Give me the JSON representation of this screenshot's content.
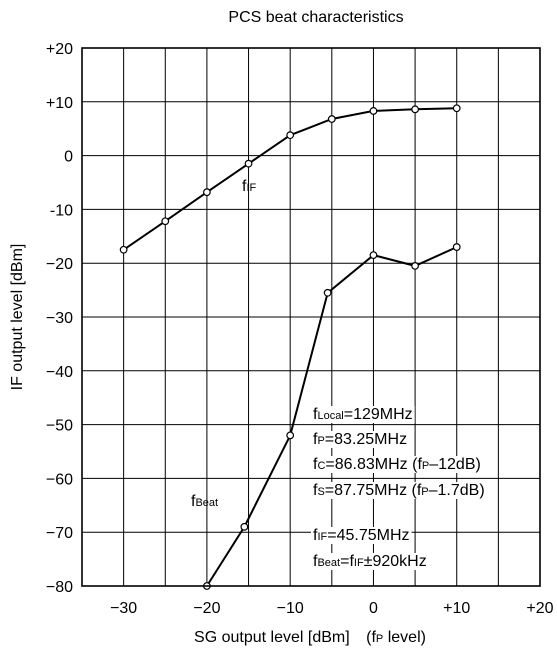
{
  "chart_data": {
    "type": "line",
    "title": "PCS beat characteristics",
    "xlabel": "SG output level [dBm]",
    "xlabel_note": {
      "pre": "(f",
      "sub": "P",
      "post": " level)"
    },
    "ylabel": "IF output level [dBm]",
    "xlim": [
      -35,
      20
    ],
    "ylim": [
      -80,
      20
    ],
    "x_ticks": [
      -30,
      -20,
      -10,
      0,
      10,
      20
    ],
    "x_tick_labels": [
      "−30",
      "−20",
      "−10",
      "0",
      "+10",
      "+20"
    ],
    "y_ticks": [
      20,
      10,
      0,
      -10,
      -20,
      -30,
      -40,
      -50,
      -60,
      -70,
      -80
    ],
    "y_tick_labels": [
      "+20",
      "+10",
      "0",
      "-10",
      "−20",
      "−30",
      "−40",
      "−50",
      "−60",
      "−70",
      "−80"
    ],
    "grid": true,
    "series": [
      {
        "name": "fIF",
        "label_main": "f",
        "label_sub": "IF",
        "x": [
          -30,
          -25,
          -20,
          -15,
          -10,
          -5,
          0,
          5,
          10
        ],
        "y": [
          -17.5,
          -12.2,
          -6.8,
          -1.5,
          3.8,
          6.8,
          8.3,
          8.6,
          8.8
        ]
      },
      {
        "name": "fBeat",
        "label_main": "f",
        "label_sub": "Beat",
        "x": [
          -20,
          -15.5,
          -10,
          -5.5,
          0,
          5,
          10
        ],
        "y": [
          -80,
          -69,
          -52,
          -25.5,
          -18.5,
          -20.5,
          -17
        ]
      }
    ],
    "annotations": [
      {
        "pre": "f",
        "sub": "Local",
        "post": "=129MHz"
      },
      {
        "pre": "f",
        "sub": "P",
        "post": "=83.25MHz"
      },
      {
        "pre": "f",
        "sub": "C",
        "post": "=86.83MHz (f",
        "sub2": "P",
        "post2": "–12dB)"
      },
      {
        "pre": "f",
        "sub": "S",
        "post": "=87.75MHz (f",
        "sub2": "P",
        "post2": "–1.7dB)"
      },
      {
        "pre": "f",
        "sub": "IF",
        "post": "=45.75MHz"
      },
      {
        "pre": "f",
        "sub": "Beat",
        "post": "=f",
        "sub2": "IF",
        "post2": "±920kHz"
      }
    ]
  }
}
